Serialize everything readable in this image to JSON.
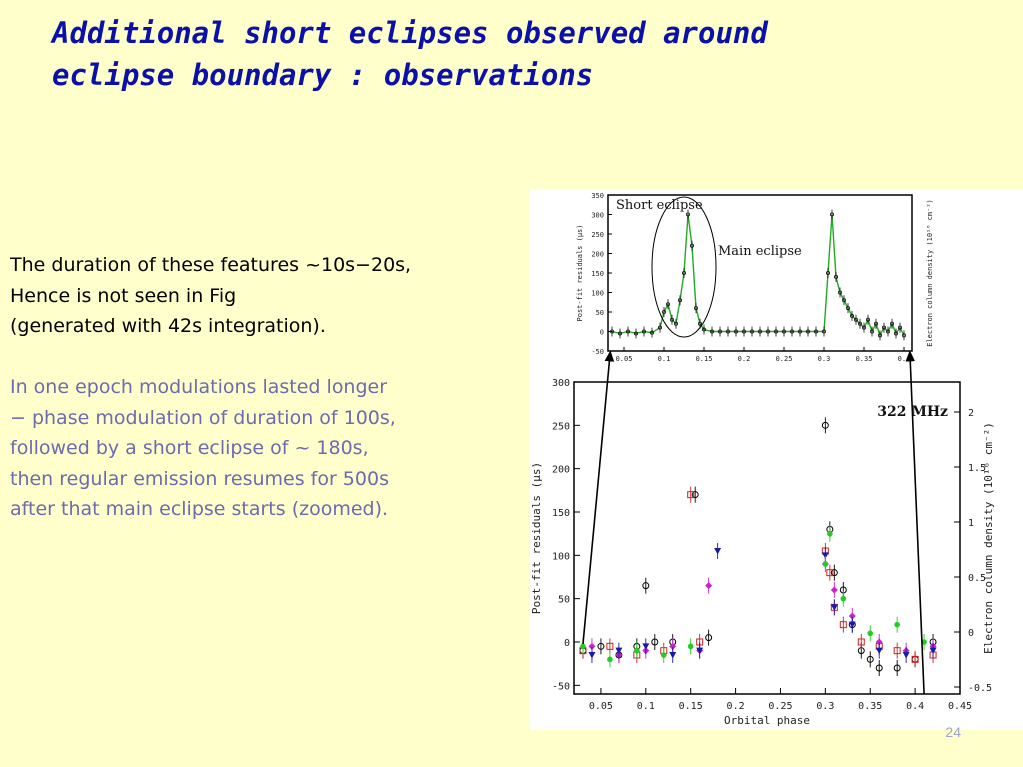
{
  "slide": {
    "title_lines": [
      "Additional short eclipses observed around",
      "eclipse boundary : observations"
    ],
    "para1_lines": [
      "The duration of these features ~10s−20s,",
      "Hence is not seen in Fig",
      "(generated  with 42s integration)."
    ],
    "para2_lines": [
      "In one  epoch modulations lasted longer",
      "− phase modulation of duration of 100s,",
      "followed by a short eclipse of ~ 180s,",
      "then regular emission resumes for 500s",
      "after that main eclipse starts (zoomed)."
    ],
    "page_number": "24"
  },
  "chart_data": [
    {
      "type": "scatter",
      "title": "",
      "annotations": [
        "Short eclipse",
        "Main eclipse"
      ],
      "xlabel": "",
      "ylabel": "Post-fit residuals (μs)",
      "y2label": "Electron column density (10¹⁶ cm⁻²)",
      "xlim": [
        0.03,
        0.41
      ],
      "ylim": [
        -50,
        350
      ],
      "x_ticks": [
        "0.05",
        "0.1",
        "0.15",
        "0.2",
        "0.25",
        "0.3",
        "0.35",
        "0.4"
      ],
      "y_ticks": [
        "350",
        "300",
        "250",
        "200",
        "150",
        "100",
        "50",
        "0",
        "-50"
      ],
      "color": "#22aa22",
      "series": [
        {
          "x": [
            0.035,
            0.045,
            0.055,
            0.065,
            0.075,
            0.085,
            0.095,
            0.1,
            0.105,
            0.11,
            0.115,
            0.12,
            0.125,
            0.13,
            0.135,
            0.14,
            0.145,
            0.15,
            0.16,
            0.17,
            0.18,
            0.19,
            0.2,
            0.21,
            0.22,
            0.23,
            0.24,
            0.25,
            0.26,
            0.27,
            0.28,
            0.29,
            0.3,
            0.305,
            0.31,
            0.315,
            0.32,
            0.325,
            0.33,
            0.335,
            0.34,
            0.345,
            0.35,
            0.355,
            0.36,
            0.365,
            0.37,
            0.375,
            0.38,
            0.385,
            0.39,
            0.395,
            0.4
          ],
          "y": [
            0,
            -5,
            0,
            -5,
            0,
            -3,
            10,
            50,
            70,
            30,
            20,
            80,
            150,
            300,
            220,
            60,
            20,
            5,
            0,
            0,
            0,
            0,
            0,
            0,
            0,
            0,
            0,
            0,
            0,
            0,
            0,
            0,
            0,
            150,
            300,
            140,
            100,
            80,
            60,
            40,
            30,
            20,
            10,
            30,
            0,
            20,
            -10,
            10,
            0,
            20,
            -5,
            10,
            -10
          ]
        }
      ]
    },
    {
      "type": "scatter",
      "title": "322 MHz",
      "xlabel": "Orbital phase",
      "ylabel": "Post-fit residuals (μs)",
      "y2label": "Electron column density (10¹⁶ cm⁻²)",
      "xlim": [
        0.02,
        0.45
      ],
      "ylim": [
        -60,
        300
      ],
      "x_ticks": [
        "0.05",
        "0.1",
        "0.15",
        "0.2",
        "0.25",
        "0.3",
        "0.35",
        "0.4",
        "0.45"
      ],
      "y_ticks": [
        "300",
        "250",
        "200",
        "150",
        "100",
        "50",
        "0",
        "-50"
      ],
      "y2_ticks": [
        "2",
        "1.5",
        "1",
        "0.5",
        "0",
        "-0.5"
      ],
      "series": [
        {
          "marker": "open-circle",
          "color": "#000000",
          "x": [
            0.03,
            0.05,
            0.07,
            0.09,
            0.1,
            0.11,
            0.13,
            0.155,
            0.17,
            0.3,
            0.305,
            0.31,
            0.32,
            0.33,
            0.34,
            0.35,
            0.36,
            0.38,
            0.4,
            0.42
          ],
          "y": [
            -10,
            -5,
            -15,
            -5,
            65,
            0,
            0,
            170,
            5,
            250,
            130,
            80,
            60,
            20,
            -10,
            -20,
            -30,
            -30,
            -20,
            0
          ]
        },
        {
          "marker": "open-square",
          "color": "#cc2222",
          "x": [
            0.03,
            0.06,
            0.09,
            0.12,
            0.15,
            0.16,
            0.3,
            0.305,
            0.31,
            0.32,
            0.34,
            0.36,
            0.38,
            0.4,
            0.42
          ],
          "y": [
            -10,
            -5,
            -15,
            -10,
            170,
            0,
            105,
            80,
            40,
            20,
            0,
            -5,
            -10,
            -20,
            -15
          ]
        },
        {
          "marker": "filled-diamond",
          "color": "#cc22cc",
          "x": [
            0.04,
            0.07,
            0.1,
            0.13,
            0.16,
            0.17,
            0.3,
            0.31,
            0.33,
            0.36,
            0.39,
            0.42
          ],
          "y": [
            -5,
            -15,
            -10,
            -5,
            -10,
            65,
            90,
            60,
            30,
            0,
            -10,
            -5
          ]
        },
        {
          "marker": "filled-triangle",
          "color": "#1a1aaa",
          "x": [
            0.04,
            0.07,
            0.1,
            0.13,
            0.16,
            0.18,
            0.3,
            0.31,
            0.33,
            0.36,
            0.39,
            0.42
          ],
          "y": [
            -15,
            -10,
            -5,
            -15,
            -10,
            105,
            100,
            40,
            20,
            -10,
            -15,
            -10
          ]
        },
        {
          "marker": "filled-circle",
          "color": "#22cc22",
          "x": [
            0.03,
            0.06,
            0.09,
            0.12,
            0.15,
            0.3,
            0.305,
            0.32,
            0.35,
            0.38,
            0.41
          ],
          "y": [
            -5,
            -20,
            -10,
            -15,
            -5,
            90,
            125,
            50,
            10,
            20,
            0
          ]
        }
      ]
    }
  ]
}
